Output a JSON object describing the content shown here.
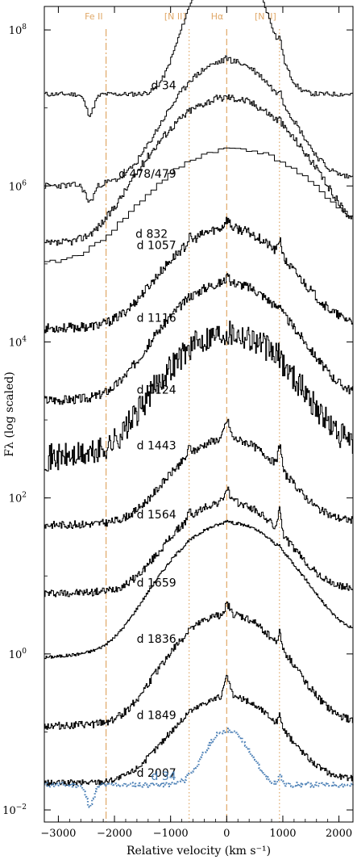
{
  "chart_data": {
    "type": "line",
    "title": "",
    "xlabel": "Relative velocity (km s⁻¹)",
    "ylabel": "Fλ (log scaled)",
    "xlim": [
      -3250,
      2250
    ],
    "ylog": true,
    "ylim": [
      0.007,
      200000000
    ],
    "x_ticks": [
      {
        "value": -3000,
        "label": "−3000"
      },
      {
        "value": -2000,
        "label": "−2000"
      },
      {
        "value": -1000,
        "label": "−1000"
      },
      {
        "value": 0,
        "label": "0"
      },
      {
        "value": 1000,
        "label": "1000"
      },
      {
        "value": 2000,
        "label": "2000"
      }
    ],
    "y_ticks": [
      {
        "value": 0.01,
        "base": "10",
        "exp": "−2"
      },
      {
        "value": 1,
        "base": "10",
        "exp": "0"
      },
      {
        "value": 100,
        "base": "10",
        "exp": "2"
      },
      {
        "value": 10000,
        "base": "10",
        "exp": "4"
      },
      {
        "value": 1000000,
        "base": "10",
        "exp": "6"
      },
      {
        "value": 100000000,
        "base": "10",
        "exp": "8"
      }
    ],
    "reference_lines": [
      {
        "label": "Fe II",
        "velocity": -2150,
        "style": "dashdot",
        "color": "#e0a868"
      },
      {
        "label": "[N II]",
        "velocity": -670,
        "style": "dotted",
        "color": "#e0a868"
      },
      {
        "label": "Hα",
        "velocity": 0,
        "style": "dashed",
        "color": "#e0a868"
      },
      {
        "label": "[N II]",
        "velocity": 940,
        "style": "dotted",
        "color": "#e0a868"
      }
    ],
    "series": [
      {
        "name": "d 34",
        "color": "#000000",
        "style": "solid",
        "label_v": -900,
        "profile": {
          "baseline": 15000000.0,
          "cont_slope": 0.0,
          "halpha_peak": 60,
          "narrow_peak": 8,
          "broad_width": 380,
          "narrow_width": 50,
          "nii_peak": 2.5,
          "absorption": 0.45,
          "step": 25,
          "noise": 0.06,
          "seed": 11
        }
      },
      {
        "name": "d 478/479",
        "color": "#000000",
        "style": "solid",
        "label_v": -900,
        "profile": {
          "baseline": 1000000.0,
          "cont_slope": 0.1,
          "halpha_peak": 35,
          "narrow_peak": 4,
          "broad_width": 600,
          "narrow_width": 45,
          "nii_peak": 5,
          "absorption": 0.4,
          "step": 25,
          "noise": 0.08,
          "seed": 23
        }
      },
      {
        "name": "d 832",
        "color": "#000000",
        "style": "solid",
        "label_v": -1050,
        "profile": {
          "baseline": 180000.0,
          "cont_slope": 0.05,
          "halpha_peak": 70,
          "narrow_peak": 3,
          "broad_width": 750,
          "narrow_width": 45,
          "nii_peak": 5,
          "absorption": 0.0,
          "step": 20,
          "noise": 0.1,
          "seed": 37
        }
      },
      {
        "name": "d 1057",
        "color": "#000000",
        "style": "solid",
        "label_v": -900,
        "profile": {
          "baseline": 100000.0,
          "cont_slope": 0.3,
          "halpha_peak": 20,
          "narrow_peak": 1,
          "broad_width": 900,
          "narrow_width": 120,
          "nii_peak": 1,
          "absorption": 0.0,
          "step": 100,
          "noise": 0.05,
          "seed": 41
        }
      },
      {
        "name": "d 1116",
        "color": "#000000",
        "style": "solid",
        "label_v": -900,
        "profile": {
          "baseline": 15000.0,
          "cont_slope": 0.05,
          "halpha_peak": 18,
          "narrow_peak": 6,
          "broad_width": 700,
          "narrow_width": 45,
          "nii_peak": 6,
          "absorption": 0.0,
          "step": 15,
          "noise": 0.12,
          "seed": 53
        }
      },
      {
        "name": "d 1124",
        "color": "#000000",
        "style": "solid",
        "label_v": -900,
        "profile": {
          "baseline": 1800.0,
          "cont_slope": 0.05,
          "halpha_peak": 30,
          "narrow_peak": 5,
          "broad_width": 700,
          "narrow_width": 45,
          "nii_peak": 4,
          "absorption": 0.0,
          "step": 15,
          "noise": 0.12,
          "seed": 67
        }
      },
      {
        "name": "d 1443",
        "color": "#000000",
        "style": "solid",
        "label_v": -900,
        "profile": {
          "baseline": 330,
          "cont_slope": 0.1,
          "halpha_peak": 35,
          "narrow_peak": 2,
          "broad_width": 700,
          "narrow_width": 45,
          "nii_peak": 3,
          "absorption": 0.0,
          "step": 15,
          "noise": 0.35,
          "seed": 71
        }
      },
      {
        "name": "d 1564",
        "color": "#000000",
        "style": "solid",
        "label_v": -900,
        "profile": {
          "baseline": 45,
          "cont_slope": 0.05,
          "halpha_peak": 12,
          "narrow_peak": 9,
          "broad_width": 650,
          "narrow_width": 45,
          "nii_peak": 6,
          "absorption": 0.0,
          "step": 15,
          "noise": 0.1,
          "seed": 83
        }
      },
      {
        "name": "d 1659",
        "color": "#000000",
        "style": "solid",
        "label_v": -900,
        "profile": {
          "baseline": 6,
          "cont_slope": 0.05,
          "halpha_peak": 14,
          "narrow_peak": 7,
          "broad_width": 650,
          "narrow_width": 45,
          "nii_peak": 6,
          "absorption": 0.0,
          "step": 15,
          "noise": 0.1,
          "seed": 97
        }
      },
      {
        "name": "d 1836",
        "color": "#000000",
        "style": "solid",
        "label_v": -900,
        "profile": {
          "baseline": 0.9,
          "cont_slope": 0.3,
          "halpha_peak": 35,
          "narrow_peak": 4,
          "broad_width": 700,
          "narrow_width": 45,
          "nii_peak": 2,
          "absorption": 0.0,
          "step": 15,
          "noise": 0.04,
          "seed": 101
        }
      },
      {
        "name": "d 1849",
        "color": "#000000",
        "style": "solid",
        "label_v": -900,
        "profile": {
          "baseline": 0.12,
          "cont_slope": 0.05,
          "halpha_peak": 25,
          "narrow_peak": 9,
          "broad_width": 650,
          "narrow_width": 45,
          "nii_peak": 6,
          "absorption": 0.0,
          "step": 15,
          "noise": 0.1,
          "seed": 113
        }
      },
      {
        "name": "d 2007",
        "color": "#000000",
        "style": "solid",
        "label_v": -900,
        "profile": {
          "baseline": 0.022,
          "cont_slope": 0.05,
          "halpha_peak": 12,
          "narrow_peak": 10,
          "broad_width": 650,
          "narrow_width": 45,
          "nii_peak": 3,
          "absorption": 0.0,
          "step": 15,
          "noise": 0.08,
          "seed": 127
        }
      },
      {
        "name": "d 34",
        "color": "#4a7fb5",
        "style": "dotted",
        "label_v": -900,
        "profile": {
          "baseline": 0.021,
          "cont_slope": 0.0,
          "halpha_peak": 5,
          "narrow_peak": 1,
          "broad_width": 300,
          "narrow_width": 50,
          "nii_peak": 1.3,
          "absorption": 0.45,
          "step": 25,
          "noise": 0.06,
          "seed": 11
        }
      }
    ]
  }
}
